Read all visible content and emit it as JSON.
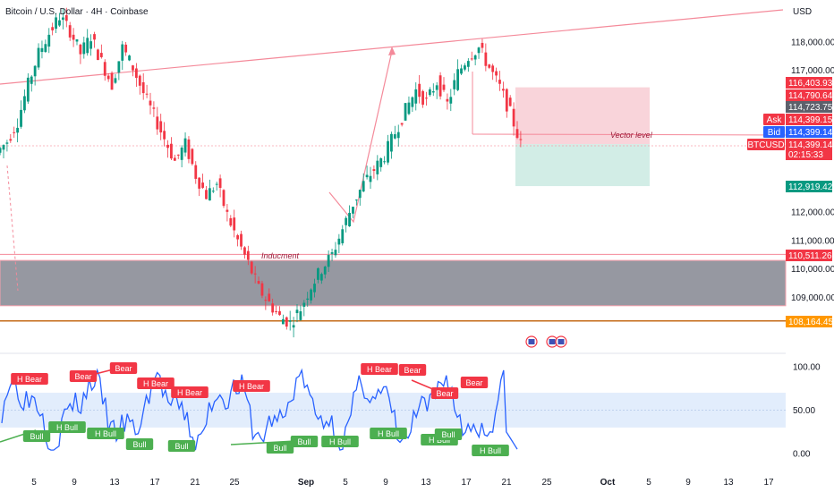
{
  "header": {
    "symbol_title": "Bitcoin / U.S. Dollar · 4H · Coinbase",
    "currency": "USD"
  },
  "colors": {
    "up": "#089981",
    "down": "#f23645",
    "trendline": "#f48a9a",
    "zone": "#787b86",
    "osc_line": "#2962ff",
    "osc_band": "#dbe9fb",
    "bull": "#4caf50",
    "bear": "#f23645",
    "orange": "#ff9800",
    "dark": "#434651",
    "blue": "#2962ff"
  },
  "price_axis": {
    "labels": [
      "118,000.00",
      "117,000.00",
      "112,000.00",
      "111,000.00",
      "110,000.00",
      "109,000.00"
    ],
    "values": [
      118000,
      117000,
      112000,
      111000,
      110000,
      109000
    ]
  },
  "price_tags": [
    {
      "name": "price-tag-116403",
      "text": "116,403.93",
      "value": 116403.93,
      "color": "#f23645"
    },
    {
      "name": "price-tag-114790",
      "text": "114,790.64",
      "value": 114790.64,
      "color": "#f23645"
    },
    {
      "name": "price-tag-114723",
      "text": "114,723.75",
      "value": 114723.75,
      "color": "#5d606b"
    },
    {
      "name": "price-tag-ask",
      "text": "114,399.15",
      "value": 114399.15,
      "color": "#f23645",
      "side_label": "Ask"
    },
    {
      "name": "price-tag-bid",
      "text": "114,399.14",
      "value": 114399.14,
      "color": "#2962ff",
      "side_label": "Bid"
    },
    {
      "name": "price-tag-last",
      "text": "114,399.14",
      "value": 114399.14,
      "color": "#f23645",
      "side_label": "BTCUSD",
      "sub_text": "02:15:33"
    },
    {
      "name": "price-tag-112919",
      "text": "112,919.42",
      "value": 112919.42,
      "color": "#089981"
    },
    {
      "name": "price-tag-110511",
      "text": "110,511.26",
      "value": 110511.26,
      "color": "#f23645"
    },
    {
      "name": "price-tag-108164",
      "text": "108,164.45",
      "value": 108164.45,
      "color": "#ff9800"
    }
  ],
  "osc_axis": {
    "labels": [
      "100.00",
      "50.00",
      "0.00"
    ],
    "values": [
      100,
      50,
      0
    ]
  },
  "x_axis": {
    "labels": [
      "5",
      "9",
      "13",
      "17",
      "21",
      "25",
      "Sep",
      "5",
      "9",
      "13",
      "17",
      "21",
      "25",
      "Oct",
      "5",
      "9",
      "13",
      "17"
    ],
    "bold": [
      "Sep",
      "Oct"
    ]
  },
  "annotations": {
    "vector_level": "Vector level",
    "inducment": "Inducment"
  },
  "signals": [
    {
      "text": "H Bear",
      "kind": "bear",
      "slot": 1
    },
    {
      "text": "Bear",
      "kind": "bear",
      "slot": 4
    },
    {
      "text": "Bear",
      "kind": "bear",
      "slot": 6
    },
    {
      "text": "H Bear",
      "kind": "bear",
      "slot": 8
    },
    {
      "text": "H Bear",
      "kind": "bear",
      "slot": 10
    },
    {
      "text": "H Bear",
      "kind": "bear",
      "slot": 13
    },
    {
      "text": "H Bear",
      "kind": "bear",
      "slot": 20
    },
    {
      "text": "Bear",
      "kind": "bear",
      "slot": 22
    },
    {
      "text": "Bear",
      "kind": "bear",
      "slot": 24
    },
    {
      "text": "Bear",
      "kind": "bear",
      "slot": 25
    },
    {
      "text": "Bull",
      "kind": "bull",
      "slot": 0
    },
    {
      "text": "H Bull",
      "kind": "bull",
      "slot": 2
    },
    {
      "text": "H Bull",
      "kind": "bull",
      "slot": 3
    },
    {
      "text": "Bull",
      "kind": "bull",
      "slot": 5
    },
    {
      "text": "Bull",
      "kind": "bull",
      "slot": 7
    },
    {
      "text": "Bull",
      "kind": "bull",
      "slot": 9
    },
    {
      "text": "Bull",
      "kind": "bull",
      "slot": 11
    },
    {
      "text": "H Bull",
      "kind": "bull",
      "slot": 12
    },
    {
      "text": "H Bull",
      "kind": "bull",
      "slot": 14
    },
    {
      "text": "H Bull",
      "kind": "bull",
      "slot": 15
    },
    {
      "text": "Bull",
      "kind": "bull",
      "slot": 16
    },
    {
      "text": "H Bull",
      "kind": "bull",
      "slot": 17
    }
  ],
  "chart_data": {
    "type": "candlestick",
    "title": "Bitcoin / U.S. Dollar · 4H · Coinbase",
    "ylabel": "USD",
    "ylim": [
      107500,
      119000
    ],
    "osc_ylim": [
      0,
      100
    ],
    "zones": [
      {
        "name": "demand-zone",
        "low": 108700,
        "high": 110300
      }
    ],
    "levels": [
      {
        "name": "inducment-level",
        "value": 110511.26
      },
      {
        "name": "orange-level",
        "value": 108164.45
      }
    ],
    "position": {
      "entry": 114399.14,
      "stop": 116403.93,
      "target": 112919.42
    },
    "close_series": [
      114500,
      115200,
      116500,
      117600,
      118300,
      118900,
      118400,
      117600,
      118200,
      117300,
      116500,
      117800,
      117100,
      116200,
      115400,
      114600,
      113800,
      114400,
      113300,
      112600,
      113000,
      111900,
      111000,
      110200,
      109300,
      108800,
      108300,
      108100,
      108600,
      109400,
      110000,
      110500,
      111400,
      112300,
      113000,
      113500,
      114000,
      114800,
      115600,
      116300,
      115900,
      116600,
      115800,
      116900,
      117500,
      117800,
      117100,
      116400,
      115500,
      114400
    ]
  }
}
